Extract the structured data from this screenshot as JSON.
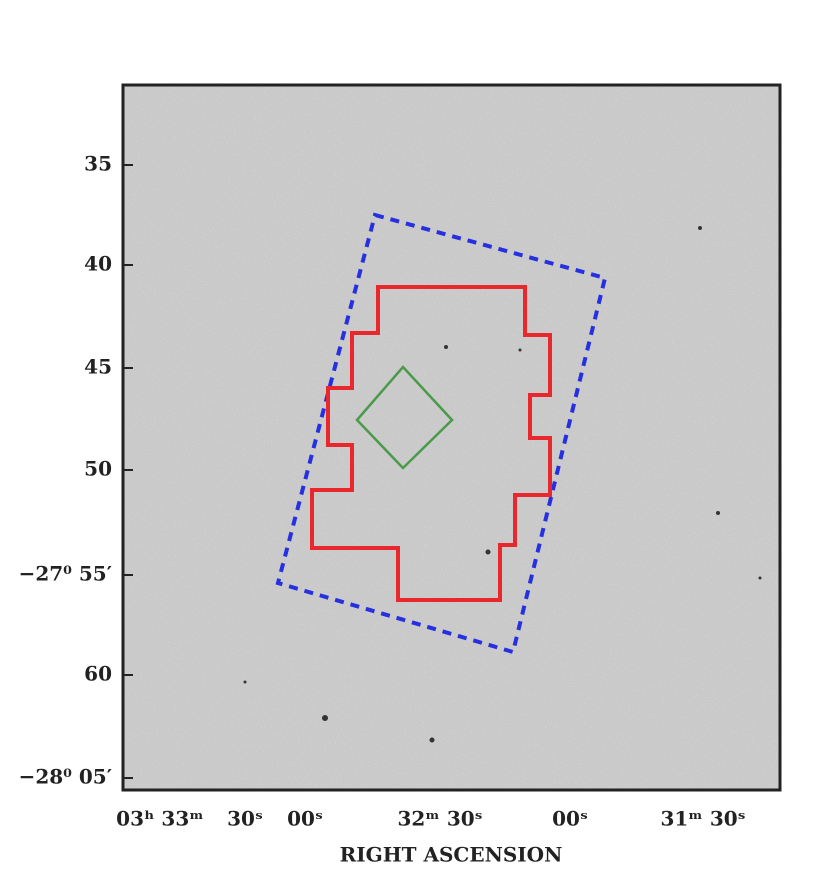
{
  "y_axis": {
    "tick_labels": [
      "35",
      "40",
      "45",
      "50",
      "−27⁰ 55′",
      "60",
      "−28⁰ 05′"
    ]
  },
  "x_axis": {
    "tick_labels": [
      "03ʰ 33ᵐ",
      "30ˢ",
      "00ˢ",
      "32ᵐ 30ˢ",
      "00ˢ",
      "31ᵐ 30ˢ"
    ],
    "title": "RIGHT ASCENSION"
  }
}
